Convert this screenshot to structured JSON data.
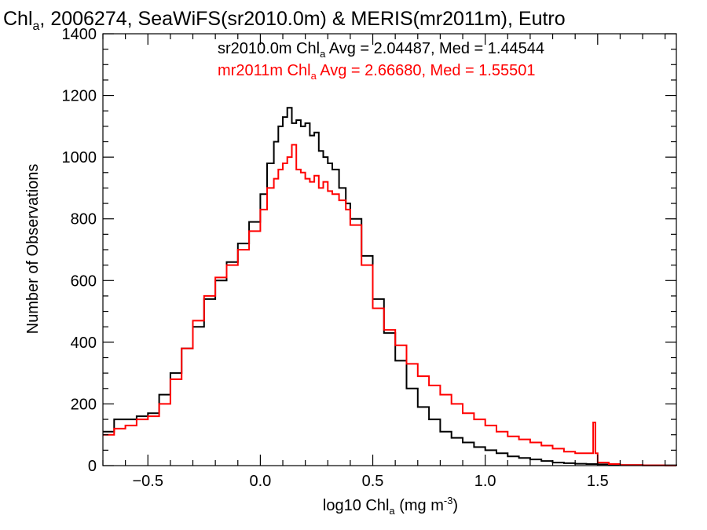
{
  "chart_data": {
    "type": "line",
    "title": {
      "prefix": "Chl",
      "sub": "a",
      "rest": ", 2006274, SeaWiFS(sr2010.0m) & MERIS(mr2011m), Eutro"
    },
    "xlabel": {
      "prefix": "log10 Chl",
      "sub": "a",
      "mid": " (mg m",
      "sup": "-3",
      "suffix": ")"
    },
    "ylabel": "Number of Observations",
    "xlim": [
      -0.7,
      1.85
    ],
    "ylim": [
      0,
      1400
    ],
    "xticks": [
      {
        "value": -0.5,
        "label": "−0.5"
      },
      {
        "value": 0.0,
        "label": "0.0"
      },
      {
        "value": 0.5,
        "label": "0.5"
      },
      {
        "value": 1.0,
        "label": "1.0"
      },
      {
        "value": 1.5,
        "label": "1.5"
      }
    ],
    "yticks": [
      {
        "value": 0,
        "label": "0"
      },
      {
        "value": 200,
        "label": "200"
      },
      {
        "value": 400,
        "label": "400"
      },
      {
        "value": 600,
        "label": "600"
      },
      {
        "value": 800,
        "label": "800"
      },
      {
        "value": 1000,
        "label": "1000"
      },
      {
        "value": 1200,
        "label": "1200"
      },
      {
        "value": 1400,
        "label": "1400"
      }
    ],
    "grid": false,
    "legend_position": "top",
    "annotations": [
      {
        "color": "#000000",
        "prefix": "sr2010.0m Chl",
        "sub": "a",
        "rest": " Avg = 2.04487, Med = 1.44544"
      },
      {
        "color": "#ff0000",
        "prefix": "mr2011m Chl",
        "sub": "a",
        "rest": " Avg = 2.66680, Med = 1.55501"
      }
    ],
    "series": [
      {
        "color": "#000000",
        "style": "step",
        "x": [
          -0.7,
          -0.65,
          -0.6,
          -0.55,
          -0.5,
          -0.45,
          -0.4,
          -0.35,
          -0.3,
          -0.25,
          -0.2,
          -0.15,
          -0.1,
          -0.05,
          0.0,
          0.03,
          0.06,
          0.08,
          0.1,
          0.12,
          0.14,
          0.16,
          0.18,
          0.2,
          0.22,
          0.24,
          0.26,
          0.28,
          0.3,
          0.32,
          0.35,
          0.38,
          0.4,
          0.45,
          0.5,
          0.55,
          0.6,
          0.65,
          0.7,
          0.75,
          0.8,
          0.85,
          0.9,
          0.95,
          1.0,
          1.05,
          1.1,
          1.15,
          1.2,
          1.25,
          1.3,
          1.35,
          1.4,
          1.45,
          1.5,
          1.55,
          1.6,
          1.7,
          1.8,
          1.85
        ],
        "values": [
          110,
          150,
          150,
          160,
          170,
          230,
          300,
          380,
          450,
          540,
          600,
          660,
          720,
          790,
          880,
          980,
          1050,
          1100,
          1130,
          1160,
          1110,
          1120,
          1100,
          1110,
          1070,
          1080,
          1020,
          1000,
          980,
          960,
          900,
          850,
          800,
          680,
          540,
          430,
          340,
          250,
          190,
          150,
          110,
          90,
          75,
          60,
          50,
          40,
          30,
          25,
          20,
          15,
          10,
          8,
          6,
          5,
          4,
          3,
          2,
          1,
          1,
          0
        ]
      },
      {
        "color": "#ff0000",
        "style": "step",
        "x": [
          -0.7,
          -0.65,
          -0.6,
          -0.55,
          -0.5,
          -0.45,
          -0.4,
          -0.35,
          -0.3,
          -0.25,
          -0.2,
          -0.15,
          -0.1,
          -0.05,
          0.0,
          0.03,
          0.06,
          0.08,
          0.1,
          0.12,
          0.14,
          0.16,
          0.18,
          0.2,
          0.22,
          0.24,
          0.26,
          0.28,
          0.3,
          0.32,
          0.35,
          0.38,
          0.4,
          0.45,
          0.5,
          0.55,
          0.6,
          0.65,
          0.7,
          0.75,
          0.8,
          0.85,
          0.9,
          0.95,
          1.0,
          1.05,
          1.1,
          1.15,
          1.2,
          1.25,
          1.3,
          1.35,
          1.4,
          1.45,
          1.48,
          1.49,
          1.5,
          1.55,
          1.6,
          1.7,
          1.8,
          1.85
        ],
        "values": [
          100,
          120,
          130,
          150,
          160,
          200,
          280,
          380,
          470,
          550,
          610,
          650,
          700,
          760,
          830,
          900,
          930,
          960,
          980,
          1000,
          1040,
          960,
          950,
          930,
          920,
          940,
          900,
          920,
          890,
          880,
          860,
          830,
          780,
          650,
          510,
          440,
          390,
          330,
          290,
          260,
          230,
          200,
          170,
          150,
          130,
          110,
          95,
          85,
          75,
          65,
          55,
          45,
          40,
          40,
          140,
          40,
          10,
          5,
          2,
          1,
          0,
          0
        ]
      }
    ]
  }
}
